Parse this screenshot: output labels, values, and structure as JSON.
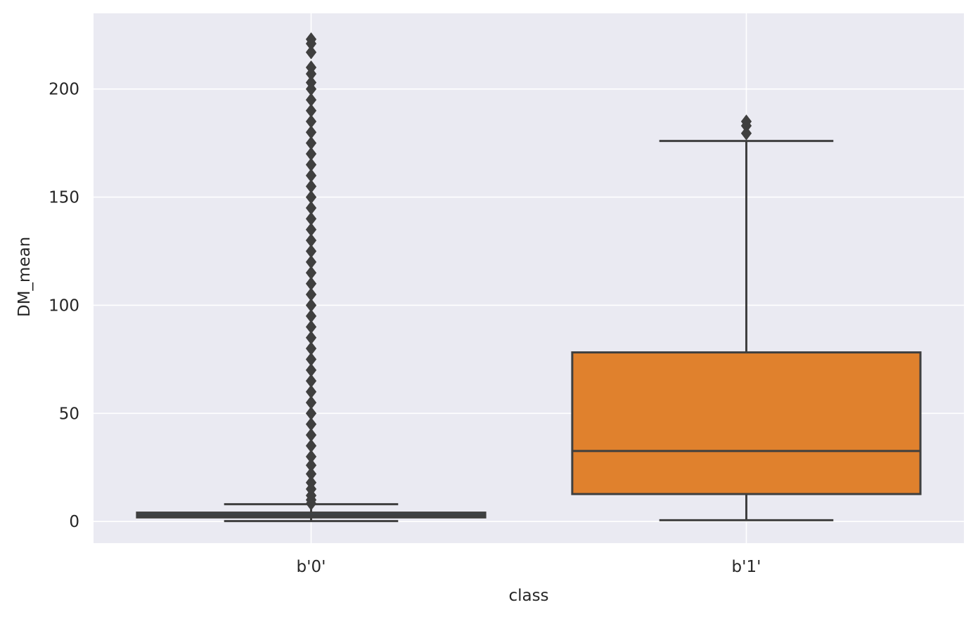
{
  "chart_data": {
    "type": "box",
    "xlabel": "class",
    "ylabel": "DM_mean",
    "ylim": [
      -10,
      235
    ],
    "yticks": [
      0,
      50,
      100,
      150,
      200
    ],
    "grid": true,
    "categories": [
      "b'0'",
      "b'1'"
    ],
    "boxes": [
      {
        "category": "b'0'",
        "whisker_low": 0.2,
        "q1": 1.9,
        "median": 2.9,
        "q3": 4.1,
        "whisker_high": 8.0,
        "color": "#3a4a56",
        "outliers": [
          8.3,
          10,
          12,
          15,
          18,
          22,
          26,
          30,
          35,
          40,
          45,
          50,
          55,
          60,
          65,
          70,
          75,
          80,
          85,
          90,
          95,
          100,
          105,
          110,
          115,
          120,
          125,
          130,
          135,
          140,
          145,
          150,
          155,
          160,
          165,
          170,
          175,
          180,
          185,
          190,
          195,
          200,
          203,
          207,
          210,
          217,
          221,
          223
        ]
      },
      {
        "category": "b'1'",
        "whisker_low": 0.6,
        "q1": 12.7,
        "median": 32.6,
        "q3": 78.2,
        "whisker_high": 176.0,
        "color": "#e0812d",
        "outliers": [
          179.5,
          183.0,
          185.0
        ]
      }
    ],
    "colors": {
      "background": "#eaeaf2",
      "grid": "#ffffff",
      "line": "#3f3f3f"
    }
  }
}
